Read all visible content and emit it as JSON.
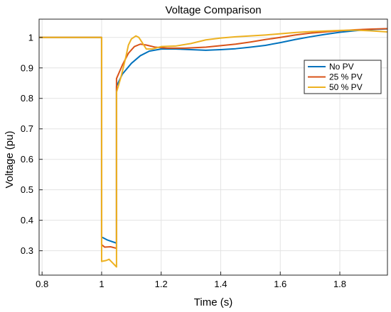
{
  "chart_data": {
    "type": "line",
    "title": "Voltage Comparison",
    "xlabel": "Time (s)",
    "ylabel": "Voltage (pu)",
    "xlim": [
      0.79,
      1.96
    ],
    "ylim": [
      0.22,
      1.06
    ],
    "xticks": [
      0.8,
      1,
      1.2,
      1.4,
      1.6,
      1.8
    ],
    "xtick_labels": [
      "0.8",
      "1",
      "1.2",
      "1.4",
      "1.6",
      "1.8"
    ],
    "yticks": [
      0.3,
      0.4,
      0.5,
      0.6,
      0.7,
      0.8,
      0.9,
      1
    ],
    "ytick_labels": [
      "0.3",
      "0.4",
      "0.5",
      "0.6",
      "0.7",
      "0.8",
      "0.9",
      "1"
    ],
    "grid": true,
    "legend_position": "top-right",
    "series": [
      {
        "name": "No PV",
        "color": "#0072BD",
        "points": [
          [
            0.79,
            1.0
          ],
          [
            1.0,
            1.0
          ],
          [
            1.0,
            0.345
          ],
          [
            1.02,
            0.335
          ],
          [
            1.05,
            0.325
          ],
          [
            1.05,
            0.84
          ],
          [
            1.07,
            0.88
          ],
          [
            1.1,
            0.915
          ],
          [
            1.13,
            0.94
          ],
          [
            1.16,
            0.955
          ],
          [
            1.2,
            0.962
          ],
          [
            1.25,
            0.962
          ],
          [
            1.3,
            0.96
          ],
          [
            1.35,
            0.958
          ],
          [
            1.4,
            0.96
          ],
          [
            1.45,
            0.963
          ],
          [
            1.5,
            0.968
          ],
          [
            1.55,
            0.974
          ],
          [
            1.6,
            0.983
          ],
          [
            1.65,
            0.993
          ],
          [
            1.7,
            1.002
          ],
          [
            1.75,
            1.01
          ],
          [
            1.8,
            1.017
          ],
          [
            1.85,
            1.022
          ],
          [
            1.9,
            1.026
          ],
          [
            1.96,
            1.028
          ]
        ]
      },
      {
        "name": "25 % PV",
        "color": "#D95319",
        "points": [
          [
            0.79,
            1.0
          ],
          [
            1.0,
            1.0
          ],
          [
            1.0,
            0.32
          ],
          [
            1.01,
            0.312
          ],
          [
            1.03,
            0.313
          ],
          [
            1.05,
            0.308
          ],
          [
            1.05,
            0.865
          ],
          [
            1.07,
            0.91
          ],
          [
            1.09,
            0.948
          ],
          [
            1.11,
            0.97
          ],
          [
            1.13,
            0.978
          ],
          [
            1.15,
            0.975
          ],
          [
            1.18,
            0.968
          ],
          [
            1.22,
            0.965
          ],
          [
            1.28,
            0.965
          ],
          [
            1.35,
            0.968
          ],
          [
            1.4,
            0.973
          ],
          [
            1.45,
            0.978
          ],
          [
            1.5,
            0.985
          ],
          [
            1.55,
            0.993
          ],
          [
            1.6,
            1.0
          ],
          [
            1.65,
            1.008
          ],
          [
            1.7,
            1.014
          ],
          [
            1.75,
            1.018
          ],
          [
            1.8,
            1.022
          ],
          [
            1.85,
            1.025
          ],
          [
            1.9,
            1.027
          ],
          [
            1.96,
            1.029
          ]
        ]
      },
      {
        "name": "50 % PV",
        "color": "#EDB120",
        "points": [
          [
            0.79,
            1.0
          ],
          [
            1.0,
            1.0
          ],
          [
            1.0,
            0.265
          ],
          [
            1.015,
            0.268
          ],
          [
            1.025,
            0.272
          ],
          [
            1.035,
            0.262
          ],
          [
            1.045,
            0.252
          ],
          [
            1.05,
            0.247
          ],
          [
            1.05,
            0.82
          ],
          [
            1.065,
            0.87
          ],
          [
            1.08,
            0.93
          ],
          [
            1.09,
            0.975
          ],
          [
            1.1,
            0.995
          ],
          [
            1.115,
            1.005
          ],
          [
            1.125,
            1.0
          ],
          [
            1.135,
            0.985
          ],
          [
            1.15,
            0.962
          ],
          [
            1.17,
            0.962
          ],
          [
            1.2,
            0.97
          ],
          [
            1.25,
            0.972
          ],
          [
            1.3,
            0.98
          ],
          [
            1.35,
            0.992
          ],
          [
            1.4,
            0.998
          ],
          [
            1.45,
            1.002
          ],
          [
            1.5,
            1.005
          ],
          [
            1.55,
            1.008
          ],
          [
            1.6,
            1.012
          ],
          [
            1.65,
            1.016
          ],
          [
            1.7,
            1.019
          ],
          [
            1.75,
            1.021
          ],
          [
            1.8,
            1.023
          ],
          [
            1.85,
            1.024
          ],
          [
            1.9,
            1.022
          ],
          [
            1.96,
            1.018
          ]
        ]
      }
    ]
  }
}
